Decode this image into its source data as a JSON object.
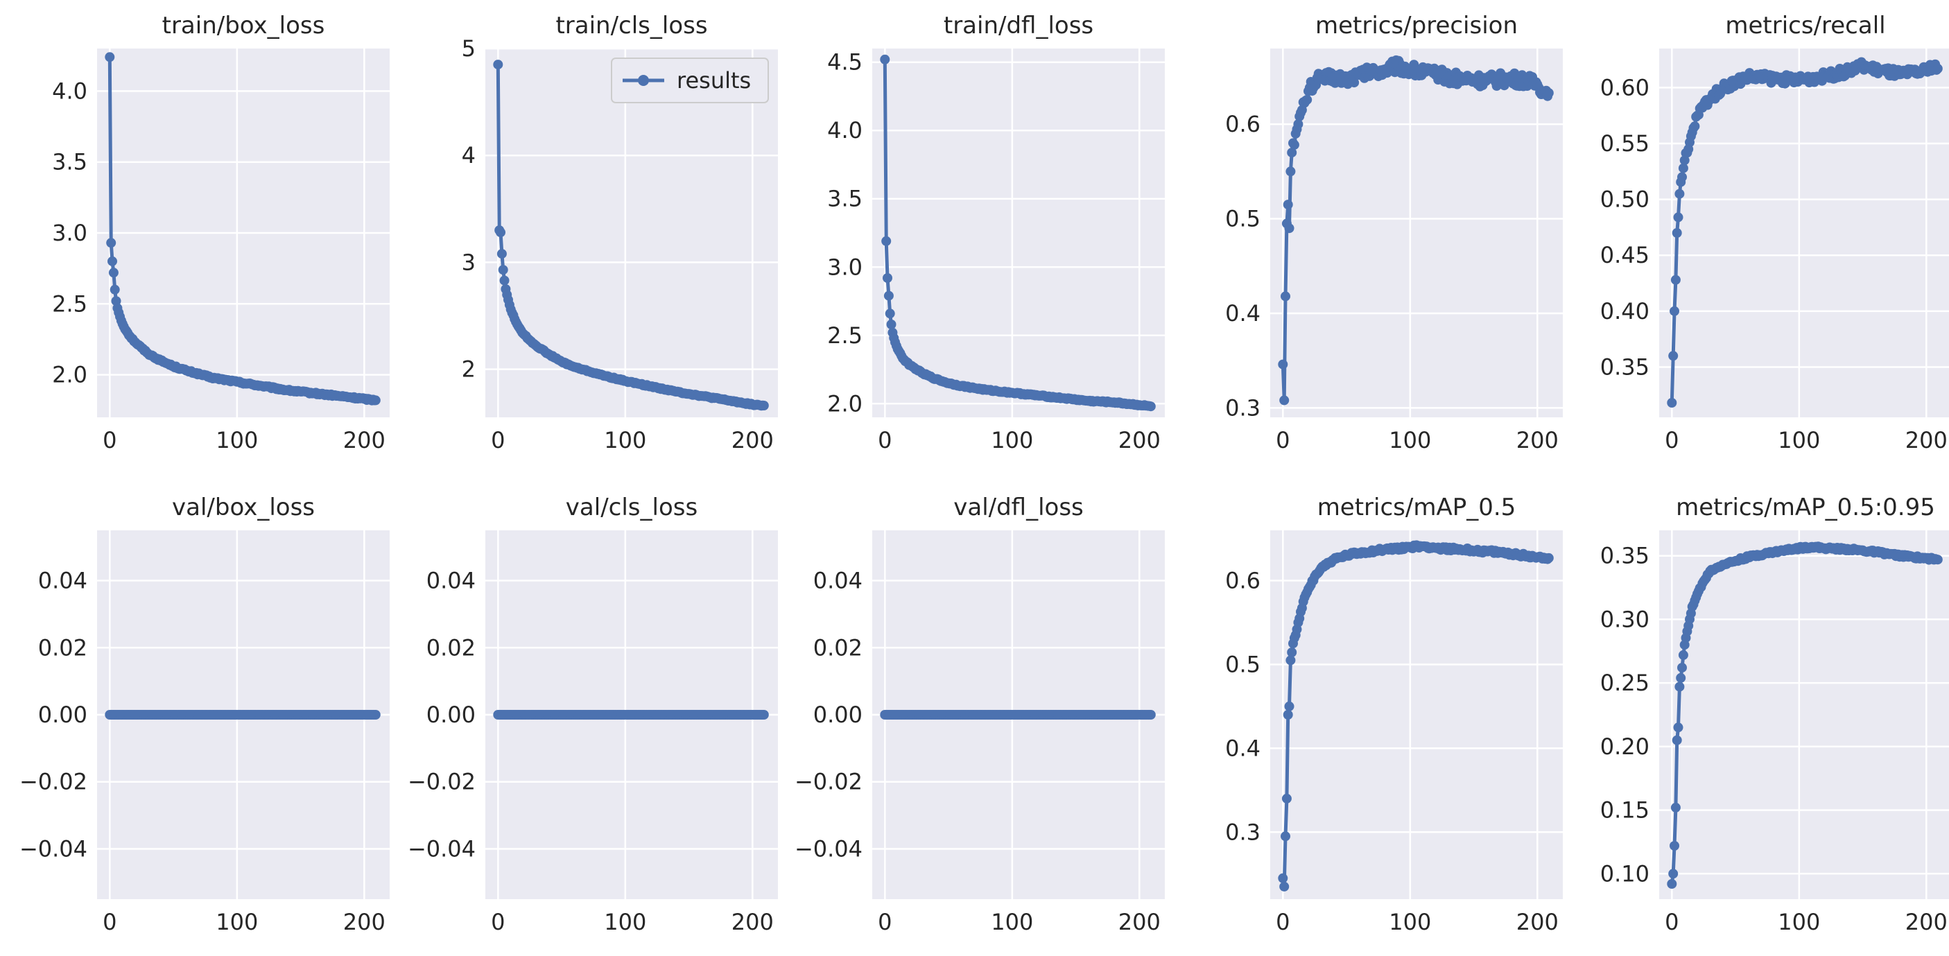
{
  "legend": {
    "label": "results",
    "location": "upper right",
    "panel": 1
  },
  "colors": {
    "series": "#4c72b0",
    "panel_background": "#eaeaf2",
    "grid": "#ffffff",
    "text": "#262626"
  },
  "chart_data": [
    {
      "type": "line",
      "title": "train/box_loss",
      "xlim": [
        -10,
        220
      ],
      "ylim": [
        1.7,
        4.3
      ],
      "xticks": [
        0,
        100,
        200
      ],
      "xtick_labels": [
        "0",
        "100",
        "200"
      ],
      "yticks": [
        2.0,
        2.5,
        3.0,
        3.5,
        4.0
      ],
      "ytick_labels": [
        "2.0",
        "2.5",
        "3.0",
        "3.5",
        "4.0"
      ],
      "x_max": 209,
      "anchors": [
        [
          0,
          4.24
        ],
        [
          1,
          2.93
        ],
        [
          2,
          2.8
        ],
        [
          3,
          2.72
        ],
        [
          4,
          2.6
        ],
        [
          5,
          2.52
        ],
        [
          6,
          2.47
        ],
        [
          8,
          2.41
        ],
        [
          10,
          2.36
        ],
        [
          13,
          2.31
        ],
        [
          16,
          2.27
        ],
        [
          20,
          2.23
        ],
        [
          25,
          2.19
        ],
        [
          30,
          2.15
        ],
        [
          40,
          2.1
        ],
        [
          50,
          2.06
        ],
        [
          60,
          2.03
        ],
        [
          80,
          1.98
        ],
        [
          100,
          1.95
        ],
        [
          120,
          1.92
        ],
        [
          140,
          1.89
        ],
        [
          160,
          1.87
        ],
        [
          180,
          1.85
        ],
        [
          200,
          1.83
        ],
        [
          209,
          1.82
        ]
      ],
      "noise": 0.006
    },
    {
      "type": "line",
      "title": "train/cls_loss",
      "xlim": [
        -10,
        220
      ],
      "ylim": [
        1.55,
        5.0
      ],
      "xticks": [
        0,
        100,
        200
      ],
      "xtick_labels": [
        "0",
        "100",
        "200"
      ],
      "yticks": [
        2,
        3,
        4,
        5
      ],
      "ytick_labels": [
        "2",
        "3",
        "4",
        "5"
      ],
      "x_max": 209,
      "anchors": [
        [
          0,
          4.85
        ],
        [
          1,
          3.3
        ],
        [
          2,
          3.28
        ],
        [
          3,
          3.08
        ],
        [
          4,
          2.93
        ],
        [
          5,
          2.83
        ],
        [
          6,
          2.75
        ],
        [
          8,
          2.65
        ],
        [
          10,
          2.56
        ],
        [
          13,
          2.47
        ],
        [
          16,
          2.4
        ],
        [
          20,
          2.33
        ],
        [
          25,
          2.27
        ],
        [
          30,
          2.22
        ],
        [
          40,
          2.14
        ],
        [
          50,
          2.07
        ],
        [
          60,
          2.02
        ],
        [
          80,
          1.95
        ],
        [
          100,
          1.89
        ],
        [
          120,
          1.84
        ],
        [
          140,
          1.79
        ],
        [
          160,
          1.75
        ],
        [
          180,
          1.71
        ],
        [
          200,
          1.67
        ],
        [
          209,
          1.66
        ]
      ],
      "noise": 0.006
    },
    {
      "type": "line",
      "title": "train/dfl_loss",
      "xlim": [
        -10,
        220
      ],
      "ylim": [
        1.9,
        4.6
      ],
      "xticks": [
        0,
        100,
        200
      ],
      "xtick_labels": [
        "0",
        "100",
        "200"
      ],
      "yticks": [
        2.0,
        2.5,
        3.0,
        3.5,
        4.0,
        4.5
      ],
      "ytick_labels": [
        "2.0",
        "2.5",
        "3.0",
        "3.5",
        "4.0",
        "4.5"
      ],
      "x_max": 209,
      "anchors": [
        [
          0,
          4.52
        ],
        [
          1,
          3.19
        ],
        [
          2,
          2.92
        ],
        [
          3,
          2.79
        ],
        [
          4,
          2.66
        ],
        [
          5,
          2.58
        ],
        [
          6,
          2.52
        ],
        [
          8,
          2.45
        ],
        [
          10,
          2.4
        ],
        [
          13,
          2.35
        ],
        [
          16,
          2.31
        ],
        [
          20,
          2.28
        ],
        [
          25,
          2.25
        ],
        [
          30,
          2.22
        ],
        [
          40,
          2.18
        ],
        [
          50,
          2.15
        ],
        [
          60,
          2.13
        ],
        [
          80,
          2.1
        ],
        [
          100,
          2.08
        ],
        [
          120,
          2.06
        ],
        [
          140,
          2.04
        ],
        [
          160,
          2.02
        ],
        [
          180,
          2.01
        ],
        [
          200,
          1.99
        ],
        [
          209,
          1.98
        ]
      ],
      "noise": 0.005
    },
    {
      "type": "line",
      "title": "metrics/precision",
      "xlim": [
        -10,
        220
      ],
      "ylim": [
        0.29,
        0.68
      ],
      "xticks": [
        0,
        100,
        200
      ],
      "xtick_labels": [
        "0",
        "100",
        "200"
      ],
      "yticks": [
        0.3,
        0.4,
        0.5,
        0.6
      ],
      "ytick_labels": [
        "0.3",
        "0.4",
        "0.5",
        "0.6"
      ],
      "x_max": 209,
      "anchors": [
        [
          0,
          0.346
        ],
        [
          1,
          0.308
        ],
        [
          2,
          0.418
        ],
        [
          3,
          0.495
        ],
        [
          4,
          0.515
        ],
        [
          5,
          0.49
        ],
        [
          6,
          0.55
        ],
        [
          7,
          0.57
        ],
        [
          8,
          0.58
        ],
        [
          10,
          0.59
        ],
        [
          12,
          0.6
        ],
        [
          15,
          0.615
        ],
        [
          18,
          0.625
        ],
        [
          20,
          0.635
        ],
        [
          25,
          0.645
        ],
        [
          30,
          0.648
        ],
        [
          40,
          0.65
        ],
        [
          50,
          0.648
        ],
        [
          60,
          0.652
        ],
        [
          80,
          0.658
        ],
        [
          90,
          0.662
        ],
        [
          100,
          0.658
        ],
        [
          120,
          0.652
        ],
        [
          140,
          0.648
        ],
        [
          160,
          0.646
        ],
        [
          180,
          0.648
        ],
        [
          190,
          0.646
        ],
        [
          200,
          0.642
        ],
        [
          205,
          0.635
        ],
        [
          209,
          0.633
        ]
      ],
      "noise": 0.007
    },
    {
      "type": "line",
      "title": "metrics/recall",
      "xlim": [
        -10,
        220
      ],
      "ylim": [
        0.305,
        0.635
      ],
      "xticks": [
        0,
        100,
        200
      ],
      "xtick_labels": [
        "0",
        "100",
        "200"
      ],
      "yticks": [
        0.35,
        0.4,
        0.45,
        0.5,
        0.55,
        0.6
      ],
      "ytick_labels": [
        "0.35",
        "0.40",
        "0.45",
        "0.50",
        "0.55",
        "0.60"
      ],
      "x_max": 209,
      "anchors": [
        [
          0,
          0.318
        ],
        [
          1,
          0.36
        ],
        [
          2,
          0.4
        ],
        [
          3,
          0.428
        ],
        [
          4,
          0.47
        ],
        [
          5,
          0.484
        ],
        [
          6,
          0.505
        ],
        [
          8,
          0.52
        ],
        [
          10,
          0.535
        ],
        [
          13,
          0.545
        ],
        [
          16,
          0.56
        ],
        [
          20,
          0.575
        ],
        [
          25,
          0.585
        ],
        [
          30,
          0.59
        ],
        [
          40,
          0.6
        ],
        [
          50,
          0.605
        ],
        [
          60,
          0.61
        ],
        [
          80,
          0.608
        ],
        [
          100,
          0.607
        ],
        [
          120,
          0.61
        ],
        [
          140,
          0.615
        ],
        [
          150,
          0.62
        ],
        [
          160,
          0.616
        ],
        [
          180,
          0.612
        ],
        [
          200,
          0.615
        ],
        [
          205,
          0.62
        ],
        [
          209,
          0.617
        ]
      ],
      "noise": 0.004
    },
    {
      "type": "line",
      "title": "val/box_loss",
      "xlim": [
        -10,
        220
      ],
      "ylim": [
        -0.055,
        0.055
      ],
      "xticks": [
        0,
        100,
        200
      ],
      "xtick_labels": [
        "0",
        "100",
        "200"
      ],
      "yticks": [
        -0.04,
        -0.02,
        0.0,
        0.02,
        0.04
      ],
      "ytick_labels": [
        "−0.04",
        "−0.02",
        "0.00",
        "0.02",
        "0.04"
      ],
      "x_max": 209,
      "anchors": [
        [
          0,
          0.0
        ],
        [
          209,
          0.0
        ]
      ],
      "noise": 0
    },
    {
      "type": "line",
      "title": "val/cls_loss",
      "xlim": [
        -10,
        220
      ],
      "ylim": [
        -0.055,
        0.055
      ],
      "xticks": [
        0,
        100,
        200
      ],
      "xtick_labels": [
        "0",
        "100",
        "200"
      ],
      "yticks": [
        -0.04,
        -0.02,
        0.0,
        0.02,
        0.04
      ],
      "ytick_labels": [
        "−0.04",
        "−0.02",
        "0.00",
        "0.02",
        "0.04"
      ],
      "x_max": 209,
      "anchors": [
        [
          0,
          0.0
        ],
        [
          209,
          0.0
        ]
      ],
      "noise": 0
    },
    {
      "type": "line",
      "title": "val/dfl_loss",
      "xlim": [
        -10,
        220
      ],
      "ylim": [
        -0.055,
        0.055
      ],
      "xticks": [
        0,
        100,
        200
      ],
      "xtick_labels": [
        "0",
        "100",
        "200"
      ],
      "yticks": [
        -0.04,
        -0.02,
        0.0,
        0.02,
        0.04
      ],
      "ytick_labels": [
        "−0.04",
        "−0.02",
        "0.00",
        "0.02",
        "0.04"
      ],
      "x_max": 209,
      "anchors": [
        [
          0,
          0.0
        ],
        [
          209,
          0.0
        ]
      ],
      "noise": 0
    },
    {
      "type": "line",
      "title": "metrics/mAP_0.5",
      "xlim": [
        -10,
        220
      ],
      "ylim": [
        0.22,
        0.66
      ],
      "xticks": [
        0,
        100,
        200
      ],
      "xtick_labels": [
        "0",
        "100",
        "200"
      ],
      "yticks": [
        0.3,
        0.4,
        0.5,
        0.6
      ],
      "ytick_labels": [
        "0.3",
        "0.4",
        "0.5",
        "0.6"
      ],
      "x_max": 209,
      "anchors": [
        [
          0,
          0.245
        ],
        [
          1,
          0.235
        ],
        [
          2,
          0.295
        ],
        [
          3,
          0.34
        ],
        [
          4,
          0.44
        ],
        [
          5,
          0.45
        ],
        [
          6,
          0.505
        ],
        [
          8,
          0.525
        ],
        [
          10,
          0.535
        ],
        [
          13,
          0.555
        ],
        [
          16,
          0.575
        ],
        [
          20,
          0.59
        ],
        [
          25,
          0.605
        ],
        [
          30,
          0.615
        ],
        [
          40,
          0.625
        ],
        [
          50,
          0.63
        ],
        [
          60,
          0.633
        ],
        [
          80,
          0.637
        ],
        [
          100,
          0.64
        ],
        [
          110,
          0.641
        ],
        [
          120,
          0.639
        ],
        [
          140,
          0.637
        ],
        [
          160,
          0.635
        ],
        [
          180,
          0.632
        ],
        [
          200,
          0.628
        ],
        [
          209,
          0.627
        ]
      ],
      "noise": 0.002
    },
    {
      "type": "line",
      "title": "metrics/mAP_0.5:0.95",
      "xlim": [
        -10,
        220
      ],
      "ylim": [
        0.08,
        0.37
      ],
      "xticks": [
        0,
        100,
        200
      ],
      "xtick_labels": [
        "0",
        "100",
        "200"
      ],
      "yticks": [
        0.1,
        0.15,
        0.2,
        0.25,
        0.3,
        0.35
      ],
      "ytick_labels": [
        "0.10",
        "0.15",
        "0.20",
        "0.25",
        "0.30",
        "0.35"
      ],
      "x_max": 209,
      "anchors": [
        [
          0,
          0.092
        ],
        [
          1,
          0.1
        ],
        [
          2,
          0.122
        ],
        [
          3,
          0.152
        ],
        [
          4,
          0.205
        ],
        [
          5,
          0.215
        ],
        [
          6,
          0.247
        ],
        [
          8,
          0.262
        ],
        [
          10,
          0.28
        ],
        [
          13,
          0.295
        ],
        [
          16,
          0.31
        ],
        [
          20,
          0.32
        ],
        [
          25,
          0.33
        ],
        [
          30,
          0.338
        ],
        [
          40,
          0.343
        ],
        [
          50,
          0.346
        ],
        [
          60,
          0.349
        ],
        [
          80,
          0.353
        ],
        [
          100,
          0.356
        ],
        [
          110,
          0.357
        ],
        [
          120,
          0.356
        ],
        [
          140,
          0.355
        ],
        [
          160,
          0.353
        ],
        [
          180,
          0.35
        ],
        [
          200,
          0.348
        ],
        [
          209,
          0.347
        ]
      ],
      "noise": 0.001
    }
  ]
}
